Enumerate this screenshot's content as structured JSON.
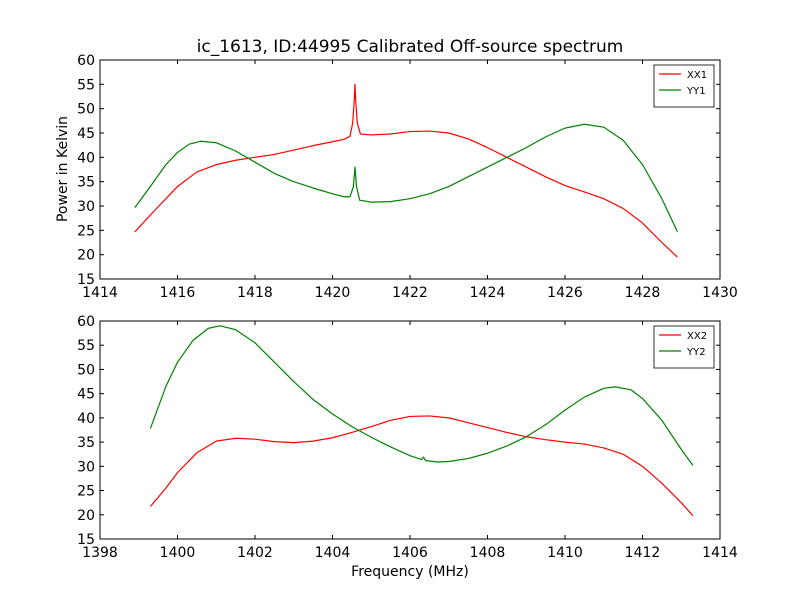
{
  "title": "ic_1613, ID:44995 Calibrated Off-source spectrum",
  "chart_data": [
    {
      "type": "line",
      "ylabel": "Power in Kelvin",
      "xlabel": "",
      "xlim": [
        1414,
        1430
      ],
      "ylim": [
        15,
        60
      ],
      "xticks": [
        1414,
        1416,
        1418,
        1420,
        1422,
        1424,
        1426,
        1428,
        1430
      ],
      "yticks": [
        15,
        20,
        25,
        30,
        35,
        40,
        45,
        50,
        55,
        60
      ],
      "grid": false,
      "legend_position": "top-right",
      "series": [
        {
          "name": "XX1",
          "color": "#ff0000",
          "points": [
            [
              1414.9,
              24.7
            ],
            [
              1415.4,
              29.0
            ],
            [
              1416.0,
              34.0
            ],
            [
              1416.5,
              37.0
            ],
            [
              1417.0,
              38.5
            ],
            [
              1417.5,
              39.4
            ],
            [
              1418.0,
              40.0
            ],
            [
              1418.5,
              40.6
            ],
            [
              1419.0,
              41.5
            ],
            [
              1419.5,
              42.4
            ],
            [
              1420.0,
              43.2
            ],
            [
              1420.3,
              43.7
            ],
            [
              1420.45,
              44.3
            ],
            [
              1420.52,
              47.0
            ],
            [
              1420.56,
              51.5
            ],
            [
              1420.58,
              55.0
            ],
            [
              1420.6,
              51.5
            ],
            [
              1420.64,
              47.0
            ],
            [
              1420.72,
              44.8
            ],
            [
              1421.0,
              44.6
            ],
            [
              1421.5,
              44.8
            ],
            [
              1422.0,
              45.3
            ],
            [
              1422.5,
              45.4
            ],
            [
              1423.0,
              45.0
            ],
            [
              1423.5,
              43.8
            ],
            [
              1424.0,
              42.0
            ],
            [
              1424.5,
              40.0
            ],
            [
              1425.0,
              38.0
            ],
            [
              1425.5,
              36.0
            ],
            [
              1426.0,
              34.2
            ],
            [
              1426.5,
              32.9
            ],
            [
              1427.0,
              31.5
            ],
            [
              1427.5,
              29.5
            ],
            [
              1428.0,
              26.5
            ],
            [
              1428.5,
              22.5
            ],
            [
              1428.9,
              19.5
            ]
          ]
        },
        {
          "name": "YY1",
          "color": "#008000",
          "points": [
            [
              1414.9,
              29.7
            ],
            [
              1415.3,
              34.0
            ],
            [
              1415.7,
              38.5
            ],
            [
              1416.0,
              41.0
            ],
            [
              1416.3,
              42.7
            ],
            [
              1416.6,
              43.3
            ],
            [
              1417.0,
              43.0
            ],
            [
              1417.5,
              41.3
            ],
            [
              1418.0,
              39.0
            ],
            [
              1418.5,
              36.7
            ],
            [
              1419.0,
              35.0
            ],
            [
              1419.5,
              33.7
            ],
            [
              1420.0,
              32.5
            ],
            [
              1420.3,
              31.9
            ],
            [
              1420.45,
              31.9
            ],
            [
              1420.54,
              34.0
            ],
            [
              1420.58,
              38.0
            ],
            [
              1420.62,
              34.0
            ],
            [
              1420.7,
              31.2
            ],
            [
              1421.0,
              30.8
            ],
            [
              1421.5,
              30.9
            ],
            [
              1422.0,
              31.5
            ],
            [
              1422.5,
              32.5
            ],
            [
              1423.0,
              34.0
            ],
            [
              1423.5,
              36.0
            ],
            [
              1424.0,
              38.0
            ],
            [
              1424.5,
              40.0
            ],
            [
              1425.0,
              42.0
            ],
            [
              1425.5,
              44.2
            ],
            [
              1426.0,
              46.0
            ],
            [
              1426.5,
              46.8
            ],
            [
              1427.0,
              46.2
            ],
            [
              1427.5,
              43.5
            ],
            [
              1428.0,
              38.5
            ],
            [
              1428.5,
              31.5
            ],
            [
              1428.9,
              24.7
            ]
          ]
        }
      ]
    },
    {
      "type": "line",
      "xlabel": "Frequency (MHz)",
      "ylabel": "",
      "xlim": [
        1398,
        1414
      ],
      "ylim": [
        15,
        60
      ],
      "xticks": [
        1398,
        1400,
        1402,
        1404,
        1406,
        1408,
        1410,
        1412,
        1414
      ],
      "yticks": [
        15,
        20,
        25,
        30,
        35,
        40,
        45,
        50,
        55,
        60
      ],
      "grid": false,
      "legend_position": "top-right",
      "series": [
        {
          "name": "XX2",
          "color": "#ff0000",
          "points": [
            [
              1399.3,
              21.7
            ],
            [
              1399.7,
              25.5
            ],
            [
              1400.0,
              28.7
            ],
            [
              1400.5,
              32.8
            ],
            [
              1401.0,
              35.2
            ],
            [
              1401.5,
              35.8
            ],
            [
              1402.0,
              35.6
            ],
            [
              1402.5,
              35.1
            ],
            [
              1403.0,
              34.9
            ],
            [
              1403.5,
              35.2
            ],
            [
              1404.0,
              35.9
            ],
            [
              1404.5,
              37.0
            ],
            [
              1405.0,
              38.2
            ],
            [
              1405.5,
              39.5
            ],
            [
              1406.0,
              40.3
            ],
            [
              1406.5,
              40.4
            ],
            [
              1407.0,
              40.0
            ],
            [
              1407.5,
              39.0
            ],
            [
              1408.0,
              38.0
            ],
            [
              1408.5,
              37.0
            ],
            [
              1409.0,
              36.1
            ],
            [
              1409.5,
              35.5
            ],
            [
              1410.0,
              35.0
            ],
            [
              1410.5,
              34.6
            ],
            [
              1411.0,
              33.8
            ],
            [
              1411.5,
              32.5
            ],
            [
              1412.0,
              30.0
            ],
            [
              1412.5,
              26.5
            ],
            [
              1413.0,
              22.5
            ],
            [
              1413.3,
              19.8
            ]
          ]
        },
        {
          "name": "YY2",
          "color": "#008000",
          "points": [
            [
              1399.3,
              37.8
            ],
            [
              1399.7,
              46.5
            ],
            [
              1400.0,
              51.5
            ],
            [
              1400.4,
              56.0
            ],
            [
              1400.8,
              58.5
            ],
            [
              1401.1,
              59.0
            ],
            [
              1401.5,
              58.2
            ],
            [
              1402.0,
              55.5
            ],
            [
              1402.5,
              51.5
            ],
            [
              1403.0,
              47.5
            ],
            [
              1403.5,
              43.8
            ],
            [
              1404.0,
              40.8
            ],
            [
              1404.5,
              38.2
            ],
            [
              1405.0,
              36.0
            ],
            [
              1405.5,
              34.0
            ],
            [
              1406.0,
              32.2
            ],
            [
              1406.3,
              31.4
            ],
            [
              1406.35,
              31.9
            ],
            [
              1406.4,
              31.2
            ],
            [
              1406.7,
              30.9
            ],
            [
              1407.0,
              31.0
            ],
            [
              1407.5,
              31.6
            ],
            [
              1408.0,
              32.7
            ],
            [
              1408.5,
              34.2
            ],
            [
              1409.0,
              36.1
            ],
            [
              1409.5,
              38.6
            ],
            [
              1410.0,
              41.6
            ],
            [
              1410.5,
              44.3
            ],
            [
              1411.0,
              46.1
            ],
            [
              1411.3,
              46.4
            ],
            [
              1411.7,
              45.8
            ],
            [
              1412.0,
              44.0
            ],
            [
              1412.5,
              39.5
            ],
            [
              1413.0,
              33.5
            ],
            [
              1413.3,
              30.2
            ]
          ]
        }
      ]
    }
  ]
}
